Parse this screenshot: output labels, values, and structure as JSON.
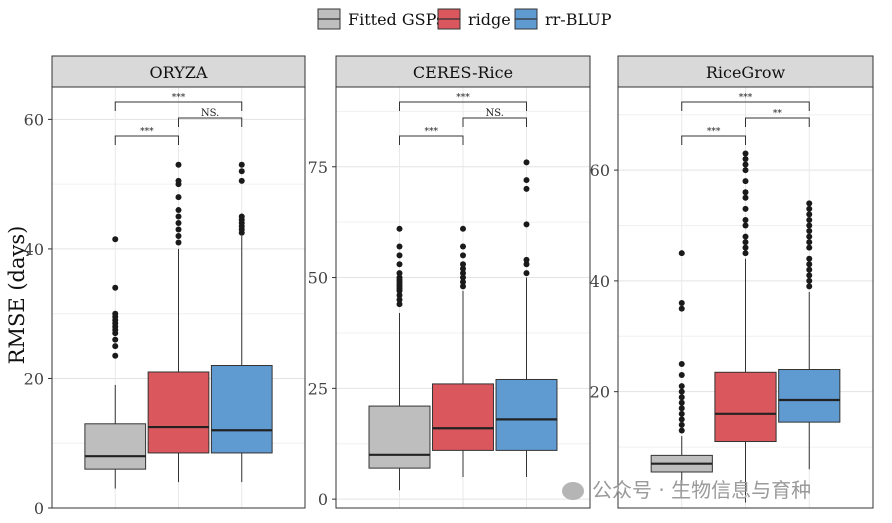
{
  "chart_data": {
    "type": "boxplot",
    "y_axis_label": "RMSE (days)",
    "legend": {
      "position": "top",
      "entries": [
        {
          "name": "Fitted GSPs",
          "color": "#bebebe"
        },
        {
          "name": "ridge",
          "color": "#d9575d"
        },
        {
          "name": "rr-BLUP",
          "color": "#5f9ad1"
        }
      ]
    },
    "panels": [
      {
        "title": "ORYZA",
        "ylim": [
          0,
          65
        ],
        "yticks": [
          0,
          20,
          40,
          60
        ],
        "boxes": [
          {
            "group": "Fitted GSPs",
            "min": 3,
            "q1": 6,
            "median": 8,
            "q3": 13,
            "max": 19,
            "outliers": [
              23.5,
              25,
              26,
              27,
              27.5,
              28,
              28.5,
              29,
              29.5,
              30,
              34,
              41.5
            ]
          },
          {
            "group": "ridge",
            "min": 4,
            "q1": 8.5,
            "median": 12.5,
            "q3": 21,
            "max": 40,
            "outliers": [
              41,
              42,
              43,
              44,
              45,
              46,
              48,
              50,
              50.5,
              53
            ]
          },
          {
            "group": "rr-BLUP",
            "min": 4,
            "q1": 8.5,
            "median": 12,
            "q3": 22,
            "max": 42,
            "outliers": [
              42.5,
              43,
              43.5,
              44,
              44.5,
              45,
              50.5,
              52,
              53
            ]
          }
        ],
        "brackets": [
          {
            "from": "Fitted GSPs",
            "to": "rr-BLUP",
            "label": "***"
          },
          {
            "from": "Fitted GSPs",
            "to": "ridge",
            "label": "***"
          },
          {
            "from": "ridge",
            "to": "rr-BLUP",
            "label": "NS."
          }
        ]
      },
      {
        "title": "CERES-Rice",
        "ylim": [
          -2,
          93
        ],
        "yticks": [
          0,
          25,
          50,
          75
        ],
        "boxes": [
          {
            "group": "Fitted GSPs",
            "min": 2,
            "q1": 7,
            "median": 10,
            "q3": 21,
            "max": 42,
            "outliers": [
              44,
              45,
              46,
              47,
              47.5,
              48,
              48.5,
              49,
              49.5,
              50,
              51,
              53,
              55,
              57,
              61
            ]
          },
          {
            "group": "ridge",
            "min": 5,
            "q1": 11,
            "median": 16,
            "q3": 26,
            "max": 47,
            "outliers": [
              48,
              49,
              50,
              51,
              52,
              53,
              55,
              57,
              61
            ]
          },
          {
            "group": "rr-BLUP",
            "min": 5,
            "q1": 11,
            "median": 18,
            "q3": 27,
            "max": 50,
            "outliers": [
              51,
              53,
              54,
              62,
              70,
              72,
              76
            ]
          }
        ],
        "brackets": [
          {
            "from": "Fitted GSPs",
            "to": "rr-BLUP",
            "label": "***"
          },
          {
            "from": "Fitted GSPs",
            "to": "ridge",
            "label": "***"
          },
          {
            "from": "ridge",
            "to": "rr-BLUP",
            "label": "NS."
          }
        ]
      },
      {
        "title": "RiceGrow",
        "ylim": [
          -1,
          75
        ],
        "yticks": [
          20,
          40,
          60
        ],
        "boxes": [
          {
            "group": "Fitted GSPs",
            "min": 3,
            "q1": 5.5,
            "median": 7,
            "q3": 8.5,
            "max": 12,
            "outliers": [
              13,
              14,
              15,
              16,
              17,
              18,
              19,
              20,
              21,
              23,
              25,
              35,
              36,
              45
            ]
          },
          {
            "group": "ridge",
            "min": 0,
            "q1": 11,
            "median": 16,
            "q3": 23.5,
            "max": 44,
            "outliers": [
              45,
              46,
              47,
              48,
              50,
              51,
              53,
              55,
              56,
              58,
              60,
              61,
              62,
              63
            ]
          },
          {
            "group": "rr-BLUP",
            "min": 6,
            "q1": 14.5,
            "median": 18.5,
            "q3": 24,
            "max": 38,
            "outliers": [
              39,
              40,
              41,
              42,
              43,
              44,
              46,
              47,
              48,
              49,
              50,
              51,
              52,
              53,
              54
            ]
          }
        ],
        "brackets": [
          {
            "from": "Fitted GSPs",
            "to": "rr-BLUP",
            "label": "***"
          },
          {
            "from": "Fitted GSPs",
            "to": "ridge",
            "label": "***"
          },
          {
            "from": "ridge",
            "to": "rr-BLUP",
            "label": "**"
          }
        ]
      }
    ]
  },
  "watermark": {
    "text": "公众号 · 生物信息与育种",
    "icon": "wechat-icon"
  }
}
